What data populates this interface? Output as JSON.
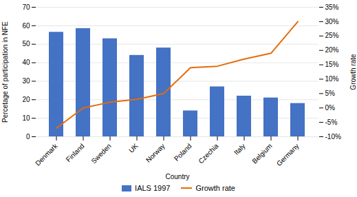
{
  "chart_data": {
    "type": "bar",
    "xlabel": "Country",
    "ylabel": "Percetage of participation in NFE",
    "y2label": "Growth rate",
    "categories": [
      "Denmark",
      "Finland",
      "Sweden",
      "UK",
      "Norway",
      "Poland",
      "Czechia",
      "Italy",
      "Belgium",
      "Germany"
    ],
    "series": [
      {
        "name": "IALS 1997",
        "type": "bar",
        "color": "#4472C4",
        "values": [
          56.5,
          58.5,
          53,
          44,
          48,
          14,
          27,
          22,
          21,
          18
        ]
      },
      {
        "name": "Growth rate",
        "type": "line",
        "axis": "y2",
        "color": "#E36C09",
        "values": [
          -7,
          0,
          2,
          3,
          5,
          14,
          14.5,
          17,
          19,
          30
        ]
      }
    ],
    "ylim": [
      0,
      70
    ],
    "yticks": [
      0,
      10,
      20,
      30,
      40,
      50,
      60,
      70
    ],
    "y2lim": [
      -10,
      35
    ],
    "y2ticks": [
      {
        "value": -10,
        "label": "-10%"
      },
      {
        "value": -5,
        "label": "-5%"
      },
      {
        "value": 0,
        "label": "0%"
      },
      {
        "value": 5,
        "label": "5%"
      },
      {
        "value": 10,
        "label": "10%"
      },
      {
        "value": 15,
        "label": "15%"
      },
      {
        "value": 20,
        "label": "20%"
      },
      {
        "value": 25,
        "label": "25%"
      },
      {
        "value": 30,
        "label": "30%"
      },
      {
        "value": 35,
        "label": "35%"
      }
    ],
    "grid": true,
    "legend": "bottom"
  }
}
